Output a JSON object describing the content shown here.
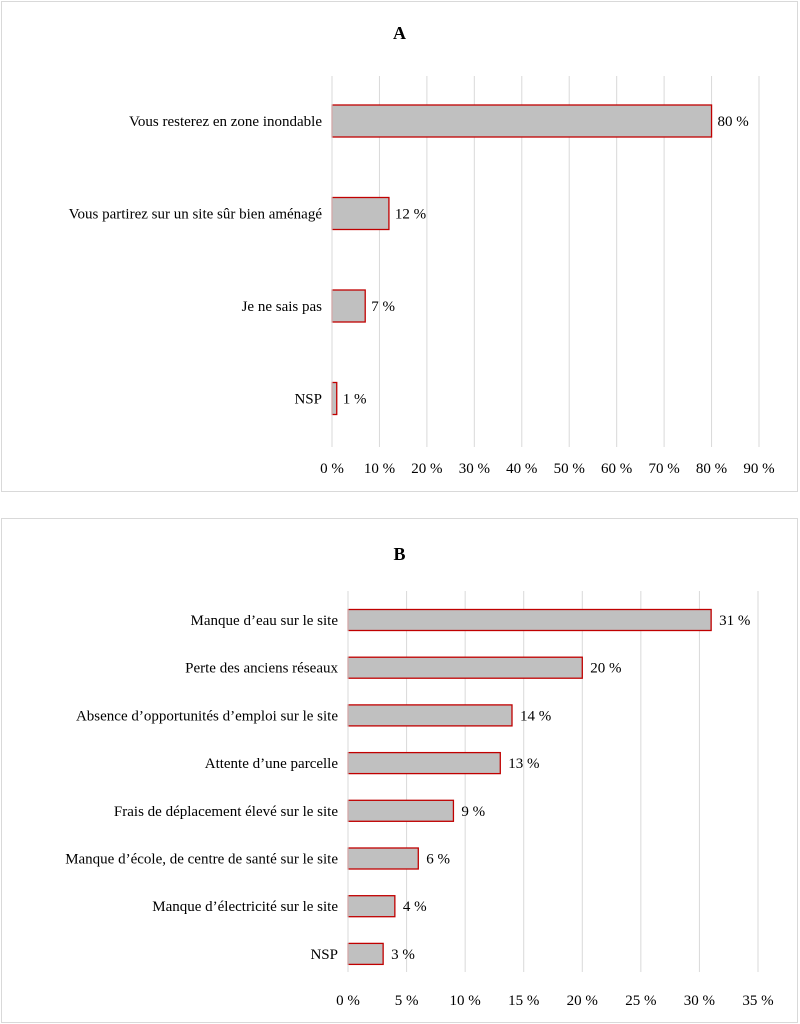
{
  "charts": [
    {
      "chart_data": {
        "type": "bar",
        "orientation": "horizontal",
        "title": "A",
        "categories": [
          "Vous resterez en zone inondable",
          "Vous partirez sur un site sûr bien aménagé",
          "Je ne sais pas",
          "NSP"
        ],
        "values": [
          80,
          12,
          7,
          1
        ],
        "value_labels": [
          "80 %",
          "12 %",
          "7 %",
          "1 %"
        ],
        "x_ticks": [
          0,
          10,
          20,
          30,
          40,
          50,
          60,
          70,
          80,
          90
        ],
        "x_tick_labels": [
          "0 %",
          "10 %",
          "20 %",
          "30 %",
          "40 %",
          "50 %",
          "60 %",
          "70 %",
          "80 %",
          "90 %"
        ],
        "xlim": [
          0,
          90
        ],
        "grid": "vertical",
        "legend": "none",
        "bar_fill": "#c0c0c0",
        "bar_edge": "#c00000"
      }
    },
    {
      "chart_data": {
        "type": "bar",
        "orientation": "horizontal",
        "title": "B",
        "categories": [
          "Manque d’eau sur le site",
          "Perte des anciens réseaux",
          "Absence d’opportunités d’emploi sur le site",
          "Attente d’une parcelle",
          "Frais de déplacement élevé sur le site",
          "Manque d’école, de centre de santé sur le site",
          "Manque d’électricité sur le site",
          "NSP"
        ],
        "values": [
          31,
          20,
          14,
          13,
          9,
          6,
          4,
          3
        ],
        "value_labels": [
          "31 %",
          "20 %",
          "14 %",
          "13 %",
          "9 %",
          "6 %",
          "4 %",
          "3 %"
        ],
        "x_ticks": [
          0,
          5,
          10,
          15,
          20,
          25,
          30,
          35
        ],
        "x_tick_labels": [
          "0 %",
          "5 %",
          "10 %",
          "15 %",
          "20 %",
          "25 %",
          "30 %",
          "35 %"
        ],
        "xlim": [
          0,
          35
        ],
        "grid": "vertical",
        "legend": "none",
        "bar_fill": "#c0c0c0",
        "bar_edge": "#c00000"
      }
    }
  ]
}
